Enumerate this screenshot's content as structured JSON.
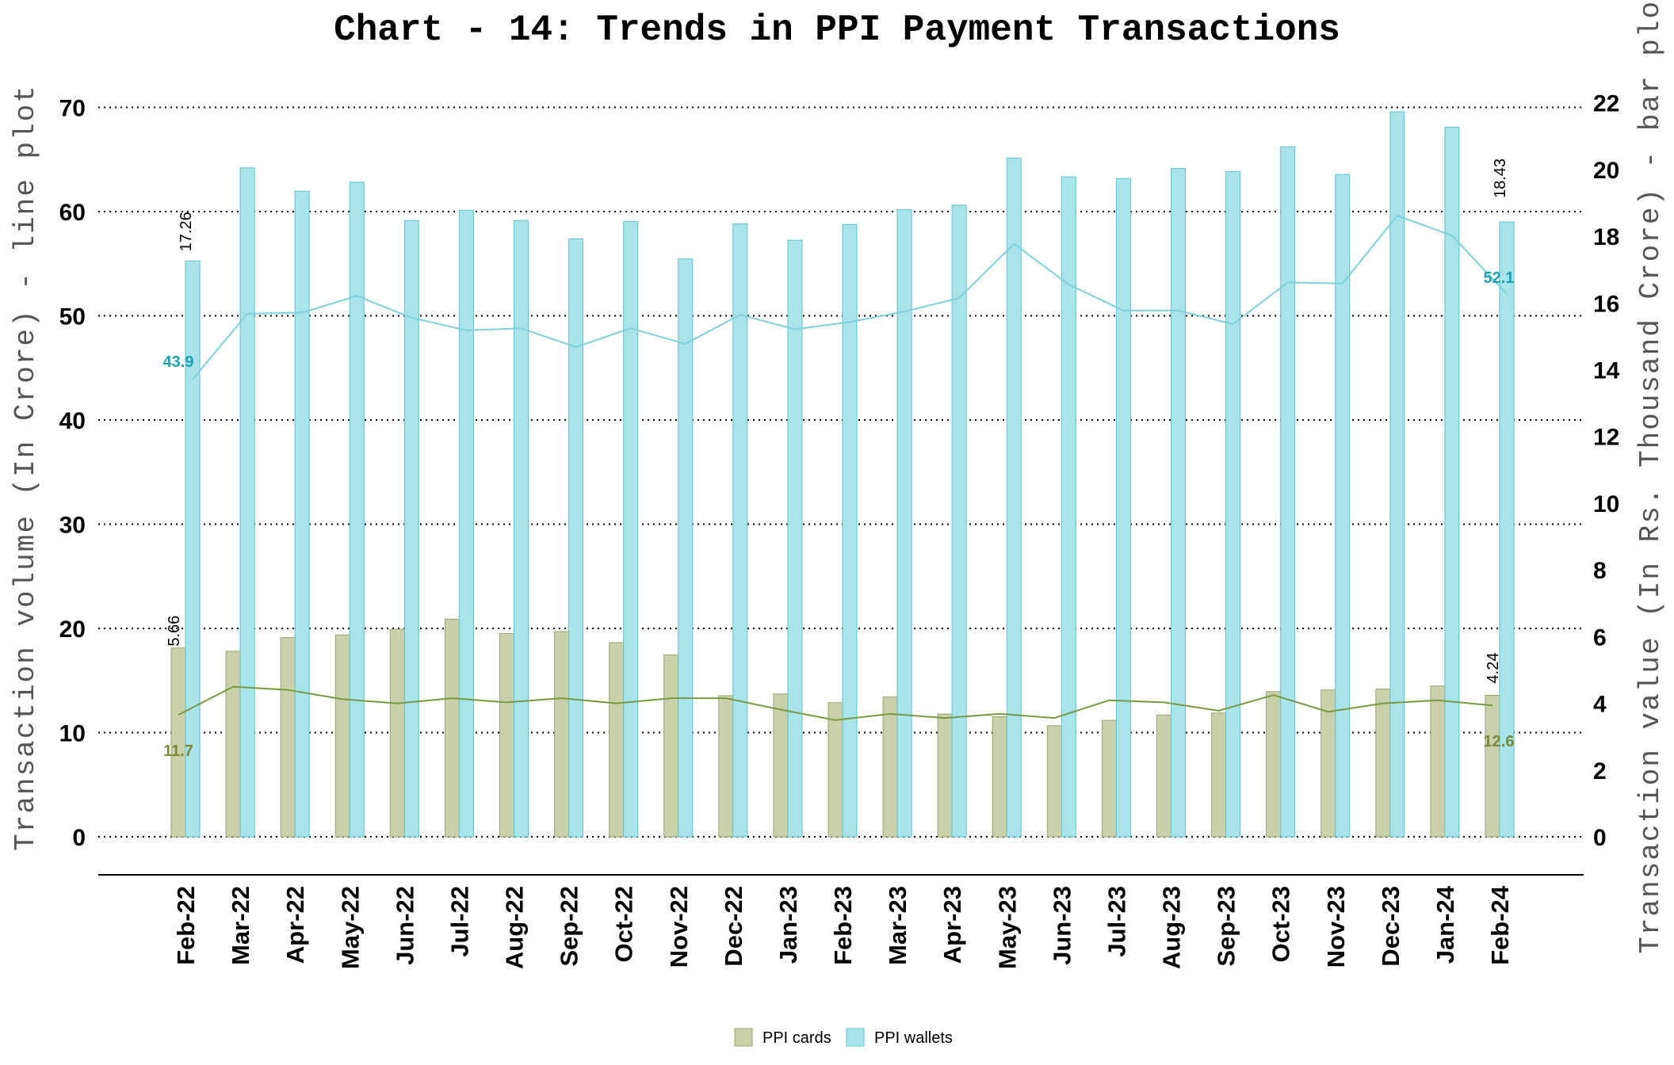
{
  "chart_data": {
    "type": "bar",
    "title": "Chart - 14: Trends in PPI Payment Transactions",
    "ylabel": "Transaction volume (In Crore) - line plot",
    "ylabel_right": "Transaction value (In Rs. Thousand Crore) - bar plot",
    "ylim": [
      0,
      73
    ],
    "ylim_right": [
      0,
      22.8
    ],
    "yticks_left": [
      "0",
      "10",
      "20",
      "30",
      "40",
      "50",
      "60",
      "70"
    ],
    "yticks_right": [
      "0",
      "2",
      "4",
      "6",
      "8",
      "10",
      "12",
      "14",
      "16",
      "18",
      "20",
      "22"
    ],
    "grid": "dotted horizontal",
    "legend_position": "bottom",
    "categories": [
      "Feb-22",
      "Mar-22",
      "Apr-22",
      "May-22",
      "Jun-22",
      "Jul-22",
      "Aug-22",
      "Sep-22",
      "Oct-22",
      "Nov-22",
      "Dec-22",
      "Jan-23",
      "Feb-23",
      "Mar-23",
      "Apr-23",
      "May-23",
      "Jun-23",
      "Jul-23",
      "Aug-23",
      "Sep-23",
      "Oct-23",
      "Nov-23",
      "Dec-23",
      "Jan-24",
      "Feb-24"
    ],
    "bar_series": [
      {
        "name": "PPI cards",
        "color": "#c9d1ab",
        "edge": "#9aa36e",
        "values": [
          5.66,
          5.56,
          5.97,
          6.05,
          6.22,
          6.52,
          6.09,
          6.15,
          5.82,
          5.45,
          4.23,
          4.28,
          4.02,
          4.19,
          3.68,
          3.6,
          3.33,
          3.49,
          3.65,
          3.71,
          4.35,
          4.4,
          4.43,
          4.52,
          4.24
        ]
      },
      {
        "name": "PPI wallets",
        "color": "#a8e4ea",
        "edge": "#5fc4d2",
        "values": [
          17.26,
          20.05,
          19.35,
          19.62,
          18.47,
          18.78,
          18.47,
          17.92,
          18.44,
          17.32,
          18.37,
          17.88,
          18.35,
          18.8,
          18.93,
          20.34,
          19.78,
          19.73,
          20.03,
          19.94,
          20.68,
          19.85,
          21.73,
          21.27,
          18.43
        ]
      }
    ],
    "line_series": [
      {
        "name": "PPI cards volume",
        "color": "#7a9a42",
        "values": [
          11.7,
          14.4,
          14.1,
          13.2,
          12.8,
          13.3,
          12.9,
          13.3,
          12.8,
          13.3,
          13.3,
          12.2,
          11.2,
          11.8,
          11.4,
          11.8,
          11.4,
          13.1,
          12.9,
          12.1,
          13.6,
          12.0,
          12.8,
          13.1,
          12.6
        ]
      },
      {
        "name": "PPI wallets volume",
        "color": "#7fd0dc",
        "values": [
          43.9,
          50.2,
          50.3,
          51.9,
          49.8,
          48.6,
          48.8,
          47.0,
          48.8,
          47.3,
          50.1,
          48.7,
          49.4,
          50.4,
          51.7,
          56.9,
          53.0,
          50.5,
          50.5,
          49.2,
          53.2,
          53.1,
          59.6,
          57.7,
          52.1
        ]
      }
    ],
    "data_labels": {
      "wallets_bar_first": "17.26",
      "wallets_bar_last": "18.43",
      "cards_bar_first": "5.66",
      "cards_bar_last": "4.24",
      "wallets_line_first": "43.9",
      "wallets_line_last": "52.1",
      "cards_line_first": "11.7",
      "cards_line_last": "12.6"
    }
  }
}
